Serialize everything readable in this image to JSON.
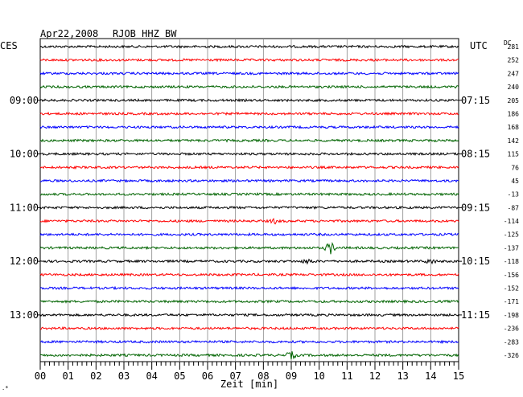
{
  "header": {
    "date": "Apr22,2008",
    "station": "RJOB HHZ BW",
    "left_zone": "CES",
    "right_zone": "UTC",
    "dc_label": "DC"
  },
  "chart_data": {
    "type": "line",
    "title": "Apr22,2008   RJOB HHZ BW",
    "xlabel": "Zeit [min]",
    "xlim": [
      0,
      15
    ],
    "x_ticks": [
      "00",
      "01",
      "02",
      "03",
      "04",
      "05",
      "06",
      "07",
      "08",
      "09",
      "10",
      "11",
      "12",
      "13",
      "14",
      "15"
    ],
    "grid": true,
    "trace_colors": [
      "#000000",
      "#ff0000",
      "#0000ff",
      "#006400"
    ],
    "left_time_labels": [
      {
        "trace": 4,
        "label": "09:00"
      },
      {
        "trace": 8,
        "label": "10:00"
      },
      {
        "trace": 12,
        "label": "11:00"
      },
      {
        "trace": 16,
        "label": "12:00"
      },
      {
        "trace": 20,
        "label": "13:00"
      }
    ],
    "right_time_labels": [
      {
        "trace": 4,
        "label": "07:15"
      },
      {
        "trace": 8,
        "label": "08:15"
      },
      {
        "trace": 12,
        "label": "09:15"
      },
      {
        "trace": 16,
        "label": "10:15"
      },
      {
        "trace": 20,
        "label": "11:15"
      }
    ],
    "dc_offsets": [
      "281",
      "252",
      "247",
      "240",
      "205",
      "186",
      "168",
      "142",
      "115",
      "76",
      "45",
      "-13",
      "-87",
      "-114",
      "-125",
      "-137",
      "-118",
      "-156",
      "-152",
      "-171",
      "-198",
      "-236",
      "-283",
      "-326"
    ],
    "events": [
      {
        "trace": 15,
        "minute": 10.4,
        "amplitude": "large"
      },
      {
        "trace": 23,
        "minute": 9.0,
        "amplitude": "medium"
      },
      {
        "trace": 13,
        "minute": 8.4,
        "amplitude": "small"
      },
      {
        "trace": 16,
        "minute": 9.6,
        "amplitude": "small"
      },
      {
        "trace": 16,
        "minute": 14.0,
        "amplitude": "small"
      }
    ]
  }
}
